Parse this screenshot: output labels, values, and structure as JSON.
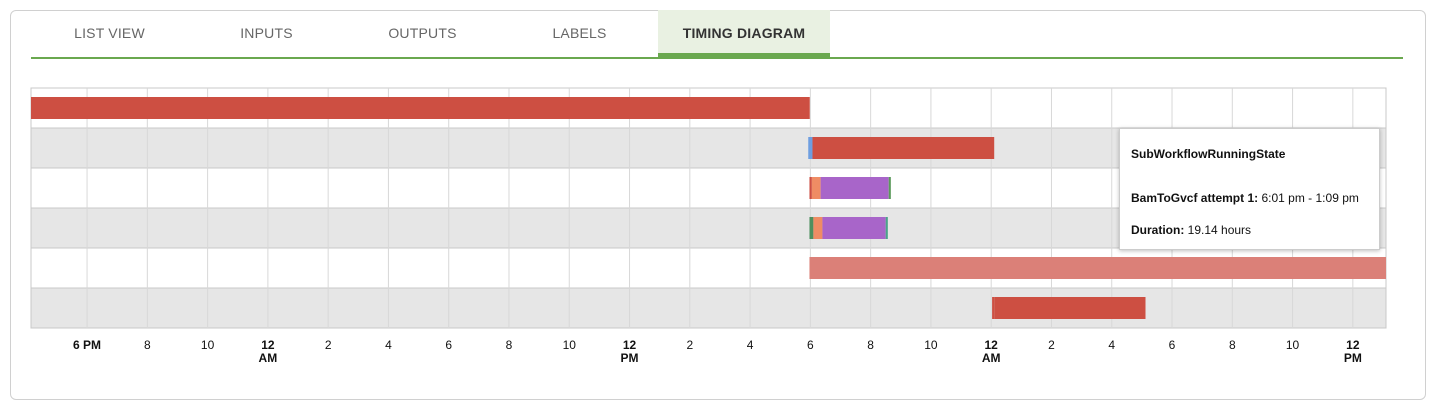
{
  "tabs": [
    "LIST VIEW",
    "INPUTS",
    "OUTPUTS",
    "LABELS",
    "TIMING DIAGRAM"
  ],
  "active_tab": 4,
  "tooltip": {
    "title": "SubWorkflowRunningState",
    "attempt_label": "BamToGvcf attempt 1:",
    "attempt_value": "6:01 pm - 1:09 pm",
    "duration_label": "Duration:",
    "duration_value": "19.14 hours"
  },
  "chart_data": {
    "type": "timeline",
    "xlim": [
      -1.86,
      43.1
    ],
    "xticks": [
      {
        "value": 0,
        "label": "6 PM"
      },
      {
        "value": 2,
        "label": "8"
      },
      {
        "value": 4,
        "label": "10"
      },
      {
        "value": 6,
        "label": "12 AM"
      },
      {
        "value": 8,
        "label": "2"
      },
      {
        "value": 10,
        "label": "4"
      },
      {
        "value": 12,
        "label": "6"
      },
      {
        "value": 14,
        "label": "8"
      },
      {
        "value": 16,
        "label": "10"
      },
      {
        "value": 18,
        "label": "12 PM"
      },
      {
        "value": 20,
        "label": "2"
      },
      {
        "value": 22,
        "label": "4"
      },
      {
        "value": 24,
        "label": "6"
      },
      {
        "value": 26,
        "label": "8"
      },
      {
        "value": 28,
        "label": "10"
      },
      {
        "value": 30,
        "label": "12 AM"
      },
      {
        "value": 32,
        "label": "2"
      },
      {
        "value": 34,
        "label": "4"
      },
      {
        "value": 36,
        "label": "6"
      },
      {
        "value": 38,
        "label": "8"
      },
      {
        "value": 40,
        "label": "10"
      },
      {
        "value": 42,
        "label": "12 PM"
      }
    ],
    "grid": true,
    "rows": [
      {
        "segments": [
          {
            "start": -1.86,
            "end": 23.98,
            "color": "#cd4f42"
          }
        ]
      },
      {
        "segments": [
          {
            "start": 23.93,
            "end": 24.07,
            "color": "#6e9ee0"
          },
          {
            "start": 24.07,
            "end": 30.1,
            "color": "#cd4f42"
          }
        ]
      },
      {
        "segments": [
          {
            "start": 23.97,
            "end": 24.05,
            "color": "#cd4f42"
          },
          {
            "start": 24.05,
            "end": 24.34,
            "color": "#ef8c64"
          },
          {
            "start": 24.34,
            "end": 26.6,
            "color": "#a865c9"
          },
          {
            "start": 26.6,
            "end": 26.67,
            "color": "#5a9a5a"
          }
        ]
      },
      {
        "segments": [
          {
            "start": 23.97,
            "end": 24.1,
            "color": "#4f8f5f"
          },
          {
            "start": 24.1,
            "end": 24.4,
            "color": "#ef8c64"
          },
          {
            "start": 24.4,
            "end": 26.5,
            "color": "#a865c9"
          },
          {
            "start": 26.5,
            "end": 26.57,
            "color": "#4aa38a"
          }
        ]
      },
      {
        "segments": [
          {
            "start": 23.97,
            "end": 43.1,
            "color": "#db8078"
          }
        ]
      },
      {
        "segments": [
          {
            "start": 30.03,
            "end": 30.1,
            "color": "#cd4f42"
          },
          {
            "start": 30.1,
            "end": 35.12,
            "color": "#cd4f42"
          }
        ]
      }
    ]
  }
}
